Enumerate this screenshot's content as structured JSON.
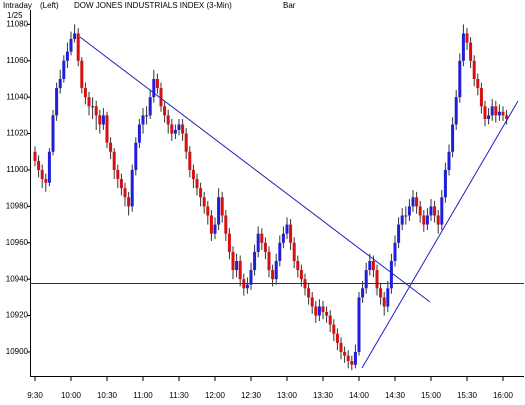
{
  "chart_data": {
    "type": "candlestick",
    "header": "Intraday",
    "axis_side": "(Left)",
    "title": "DOW JONES INDUSTRIALS INDEX  (3-Min)",
    "style": "Bar",
    "date": "1/25",
    "up_color": "#1f1fd6",
    "down_color": "#d41010",
    "categories": [
      "9:30",
      null,
      null,
      null,
      null,
      null,
      null,
      null,
      null,
      null,
      "10:00",
      null,
      null,
      null,
      null,
      null,
      null,
      null,
      null,
      null,
      "10:30",
      null,
      null,
      null,
      null,
      null,
      null,
      null,
      null,
      null,
      "11:00",
      null,
      null,
      null,
      null,
      null,
      null,
      null,
      null,
      null,
      "11:30",
      null,
      null,
      null,
      null,
      null,
      null,
      null,
      null,
      null,
      "12:00",
      null,
      null,
      null,
      null,
      null,
      null,
      null,
      null,
      null,
      "12:30",
      null,
      null,
      null,
      null,
      null,
      null,
      null,
      null,
      null,
      "13:00",
      null,
      null,
      null,
      null,
      null,
      null,
      null,
      null,
      null,
      "13:30",
      null,
      null,
      null,
      null,
      null,
      null,
      null,
      null,
      null,
      "14:00",
      null,
      null,
      null,
      null,
      null,
      null,
      null,
      null,
      null,
      "14:30",
      null,
      null,
      null,
      null,
      null,
      null,
      null,
      null,
      null,
      "15:00",
      null,
      null,
      null,
      null,
      null,
      null,
      null,
      null,
      null,
      "15:30",
      null,
      null,
      null,
      null,
      null,
      null,
      null,
      null,
      null,
      "16:00",
      null
    ],
    "open": [
      11010,
      11005,
      11000,
      10995,
      10993,
      11010,
      11030,
      11045,
      11050,
      11060,
      11065,
      11072,
      11075,
      11060,
      11045,
      11040,
      11035,
      11035,
      11030,
      11025,
      11030,
      11015,
      11010,
      11000,
      10995,
      10990,
      10985,
      10980,
      11000,
      11015,
      11025,
      11030,
      11030,
      11040,
      11050,
      11045,
      11035,
      11030,
      11025,
      11020,
      11022,
      11025,
      11020,
      11010,
      11000,
      10995,
      10990,
      10985,
      10980,
      10975,
      10965,
      10970,
      10985,
      10975,
      10965,
      10955,
      10945,
      10950,
      10940,
      10935,
      10937,
      10945,
      10955,
      10965,
      10960,
      10955,
      10945,
      10940,
      10950,
      10960,
      10965,
      10970,
      10960,
      10950,
      10945,
      10940,
      10935,
      10930,
      10925,
      10920,
      10925,
      10922,
      10920,
      10915,
      10910,
      10905,
      10900,
      10898,
      10895,
      10893,
      10900,
      10930,
      10935,
      10945,
      10950,
      10945,
      10935,
      10930,
      10925,
      10935,
      10950,
      10960,
      10970,
      10975,
      10975,
      10980,
      10985,
      10980,
      10975,
      10970,
      10975,
      10980,
      10975,
      10970,
      10985,
      11000,
      11010,
      11025,
      11040,
      11060,
      11075,
      11070,
      11060,
      11050,
      11045,
      11035,
      11028,
      11030,
      11035,
      11030,
      11032,
      11030
    ],
    "high": [
      11013,
      11008,
      11003,
      10998,
      11012,
      11033,
      11048,
      11055,
      11063,
      11070,
      11076,
      11080,
      11078,
      11062,
      11048,
      11043,
      11040,
      11038,
      11033,
      11034,
      11032,
      11018,
      11012,
      11003,
      10998,
      10993,
      10988,
      11003,
      11018,
      11028,
      11034,
      11035,
      11044,
      11055,
      11053,
      11048,
      11038,
      11033,
      11028,
      11025,
      11028,
      11028,
      11023,
      11013,
      11003,
      10998,
      10993,
      10988,
      10983,
      10978,
      10974,
      10990,
      10988,
      10978,
      10968,
      10958,
      10954,
      10953,
      10943,
      10941,
      10949,
      10959,
      10969,
      10968,
      10963,
      10958,
      10948,
      10954,
      10964,
      10969,
      10974,
      10973,
      10963,
      10953,
      10948,
      10943,
      10938,
      10933,
      10928,
      10929,
      10928,
      10925,
      10923,
      10918,
      10913,
      10908,
      10903,
      10901,
      10898,
      10904,
      10933,
      10939,
      10949,
      10954,
      10953,
      10948,
      10938,
      10933,
      10939,
      10954,
      10964,
      10974,
      10979,
      10980,
      10984,
      10989,
      10988,
      10983,
      10978,
      10979,
      10984,
      10983,
      10978,
      10989,
      11004,
      11014,
      11029,
      11044,
      11064,
      11080,
      11078,
      11073,
      11063,
      11053,
      11048,
      11038,
      11034,
      11039,
      11038,
      11036,
      11035,
      11033
    ],
    "low": [
      11002,
      10996,
      10990,
      10988,
      10991,
      11008,
      11027,
      11042,
      11048,
      11056,
      11063,
      11070,
      11057,
      11042,
      11036,
      11030,
      11028,
      11022,
      11020,
      11022,
      11012,
      11006,
      10995,
      10990,
      10986,
      10980,
      10975,
      10977,
      10997,
      11012,
      11020,
      11025,
      11028,
      11037,
      11042,
      11032,
      11026,
      11020,
      11016,
      11017,
      11019,
      11016,
      11006,
      10996,
      10990,
      10986,
      10980,
      10976,
      10970,
      10961,
      10962,
      10967,
      10971,
      10961,
      10951,
      10940,
      10941,
      10936,
      10931,
      10932,
      10934,
      10942,
      10952,
      10956,
      10951,
      10941,
      10936,
      10937,
      10947,
      10957,
      10962,
      10956,
      10946,
      10941,
      10936,
      10931,
      10926,
      10921,
      10916,
      10917,
      10918,
      10916,
      10911,
      10906,
      10901,
      10896,
      10894,
      10891,
      10890,
      10891,
      10898,
      10927,
      10932,
      10942,
      10941,
      10931,
      10926,
      10920,
      10922,
      10932,
      10947,
      10957,
      10967,
      10970,
      10972,
      10977,
      10976,
      10971,
      10966,
      10967,
      10972,
      10971,
      10965,
      10967,
      10982,
      10997,
      11007,
      11022,
      11037,
      11057,
      11066,
      11056,
      11046,
      11041,
      11031,
      11024,
      11025,
      11027,
      11026,
      11027,
      11027,
      11025
    ],
    "close": [
      11005,
      11000,
      10995,
      10993,
      11010,
      11030,
      11045,
      11050,
      11060,
      11065,
      11072,
      11075,
      11060,
      11045,
      11040,
      11035,
      11035,
      11030,
      11025,
      11030,
      11015,
      11010,
      11000,
      10995,
      10990,
      10985,
      10980,
      11000,
      11015,
      11025,
      11030,
      11030,
      11040,
      11050,
      11045,
      11035,
      11030,
      11025,
      11020,
      11022,
      11025,
      11020,
      11010,
      11000,
      10995,
      10990,
      10985,
      10980,
      10975,
      10965,
      10970,
      10985,
      10975,
      10965,
      10955,
      10945,
      10950,
      10940,
      10935,
      10937,
      10945,
      10955,
      10965,
      10960,
      10955,
      10945,
      10940,
      10950,
      10960,
      10965,
      10970,
      10960,
      10950,
      10945,
      10940,
      10935,
      10930,
      10925,
      10920,
      10925,
      10922,
      10920,
      10915,
      10910,
      10905,
      10900,
      10898,
      10895,
      10893,
      10900,
      10930,
      10935,
      10945,
      10950,
      10945,
      10935,
      10930,
      10925,
      10935,
      10950,
      10960,
      10970,
      10975,
      10975,
      10980,
      10985,
      10980,
      10975,
      10970,
      10975,
      10980,
      10975,
      10970,
      10985,
      11000,
      11010,
      11025,
      11040,
      11060,
      11075,
      11070,
      11060,
      11050,
      11045,
      11035,
      11028,
      11030,
      11035,
      11030,
      11032,
      11030,
      11028
    ],
    "ylim": [
      10889,
      11089
    ],
    "yticks": [
      11080,
      11060,
      11040,
      11020,
      11000,
      10980,
      10960,
      10940,
      10920,
      10900
    ]
  }
}
